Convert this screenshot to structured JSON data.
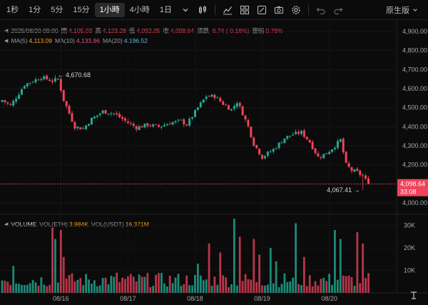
{
  "toolbar": {
    "timeframes": [
      {
        "label": "1秒",
        "active": false
      },
      {
        "label": "1分",
        "active": false
      },
      {
        "label": "5分",
        "active": false
      },
      {
        "label": "15分",
        "active": false
      },
      {
        "label": "1小時",
        "active": true
      },
      {
        "label": "4小時",
        "active": false
      },
      {
        "label": "1日",
        "active": false
      }
    ],
    "icons": [
      "chevron-down-icon",
      "candlestick-type-icon",
      "indicator-icon",
      "template-icon",
      "drawing-tools-icon",
      "screenshot-icon",
      "settings-icon",
      "undo-icon",
      "redo-icon"
    ],
    "right_label": "原生版"
  },
  "legend": {
    "date": "2025/08/20 09:00",
    "open_label": "開",
    "open": "4,105.03",
    "high_label": "高",
    "high": "4,123.28",
    "low_label": "低",
    "low": "4,092.05",
    "close_label": "收",
    "close": "4,098.64",
    "change_label": "漲跌",
    "change": "-6.74 (-0.16%)",
    "amplitude_label": "振幅",
    "amplitude": "0.76%",
    "ma5_label": "MA(5)",
    "ma5": "4,113.09",
    "ma10_label": "MA(10)",
    "ma10": "4,133.96",
    "ma20_label": "MA(20)",
    "ma20": "4,196.52"
  },
  "volume_legend": {
    "title": "VOLUME",
    "vol_eth_label": "VOL(ETH)",
    "vol_eth": "3.984K",
    "vol_usdt_label": "VOL(USDT)",
    "vol_usdt": "16.371M"
  },
  "colors": {
    "up": "#22ab94",
    "down": "#f0435a",
    "ma5": "#f5a623",
    "ma10": "#e8508a",
    "ma20": "#5fb8d6"
  },
  "chart_data": {
    "type": "candlestick",
    "price_axis": {
      "min": 4000,
      "max": 4900,
      "ticks": [
        "4,900.00",
        "4,800.00",
        "4,700.00",
        "4,600.00",
        "4,500.00",
        "4,400.00",
        "4,300.00",
        "4,200.00",
        "4,100.00",
        "4,000.00"
      ]
    },
    "volume_axis": {
      "max": 35000,
      "ticks": [
        "30K",
        "20K",
        "10K"
      ],
      "tick_values": [
        30000,
        20000,
        10000
      ]
    },
    "time_axis": {
      "labels": [
        "08/16",
        "08/17",
        "08/18",
        "08/19",
        "08/20"
      ]
    },
    "annotations": {
      "high": "4,670.68",
      "low": "4,067.41",
      "high_value": 4670.68,
      "low_value": 4067.41
    },
    "last_price": {
      "label": "4,098.64",
      "value": 4098.64,
      "countdown": "33:08"
    },
    "close_path": [
      [
        0,
        4540
      ],
      [
        3,
        4510
      ],
      [
        8,
        4620
      ],
      [
        14,
        4660
      ],
      [
        18,
        4640
      ],
      [
        20,
        4650
      ],
      [
        22,
        4540
      ],
      [
        26,
        4400
      ],
      [
        29,
        4390
      ],
      [
        32,
        4440
      ],
      [
        36,
        4480
      ],
      [
        40,
        4470
      ],
      [
        44,
        4430
      ],
      [
        48,
        4395
      ],
      [
        52,
        4410
      ],
      [
        56,
        4400
      ],
      [
        60,
        4420
      ],
      [
        64,
        4430
      ],
      [
        66,
        4410
      ],
      [
        70,
        4500
      ],
      [
        73,
        4560
      ],
      [
        76,
        4560
      ],
      [
        79,
        4520
      ],
      [
        82,
        4490
      ],
      [
        84,
        4530
      ],
      [
        86,
        4470
      ],
      [
        88,
        4400
      ],
      [
        90,
        4310
      ],
      [
        93,
        4240
      ],
      [
        97,
        4280
      ],
      [
        101,
        4340
      ],
      [
        104,
        4360
      ],
      [
        107,
        4370
      ],
      [
        110,
        4320
      ],
      [
        113,
        4240
      ],
      [
        116,
        4260
      ],
      [
        119,
        4300
      ],
      [
        121,
        4330
      ],
      [
        123,
        4200
      ],
      [
        125,
        4170
      ],
      [
        127,
        4160
      ],
      [
        129,
        4140
      ],
      [
        131,
        4098.64
      ]
    ],
    "volume_spikes": [
      [
        4,
        12000
      ],
      [
        18,
        29000
      ],
      [
        19,
        24000
      ],
      [
        21,
        28000
      ],
      [
        22,
        16000
      ],
      [
        41,
        9000
      ],
      [
        55,
        8000
      ],
      [
        70,
        13000
      ],
      [
        74,
        22000
      ],
      [
        78,
        18000
      ],
      [
        83,
        33000
      ],
      [
        85,
        25000
      ],
      [
        90,
        24000
      ],
      [
        92,
        17000
      ],
      [
        96,
        20000
      ],
      [
        98,
        14000
      ],
      [
        105,
        31000
      ],
      [
        108,
        16000
      ],
      [
        119,
        28000
      ],
      [
        121,
        24000
      ],
      [
        127,
        27000
      ],
      [
        129,
        22000
      ]
    ]
  }
}
